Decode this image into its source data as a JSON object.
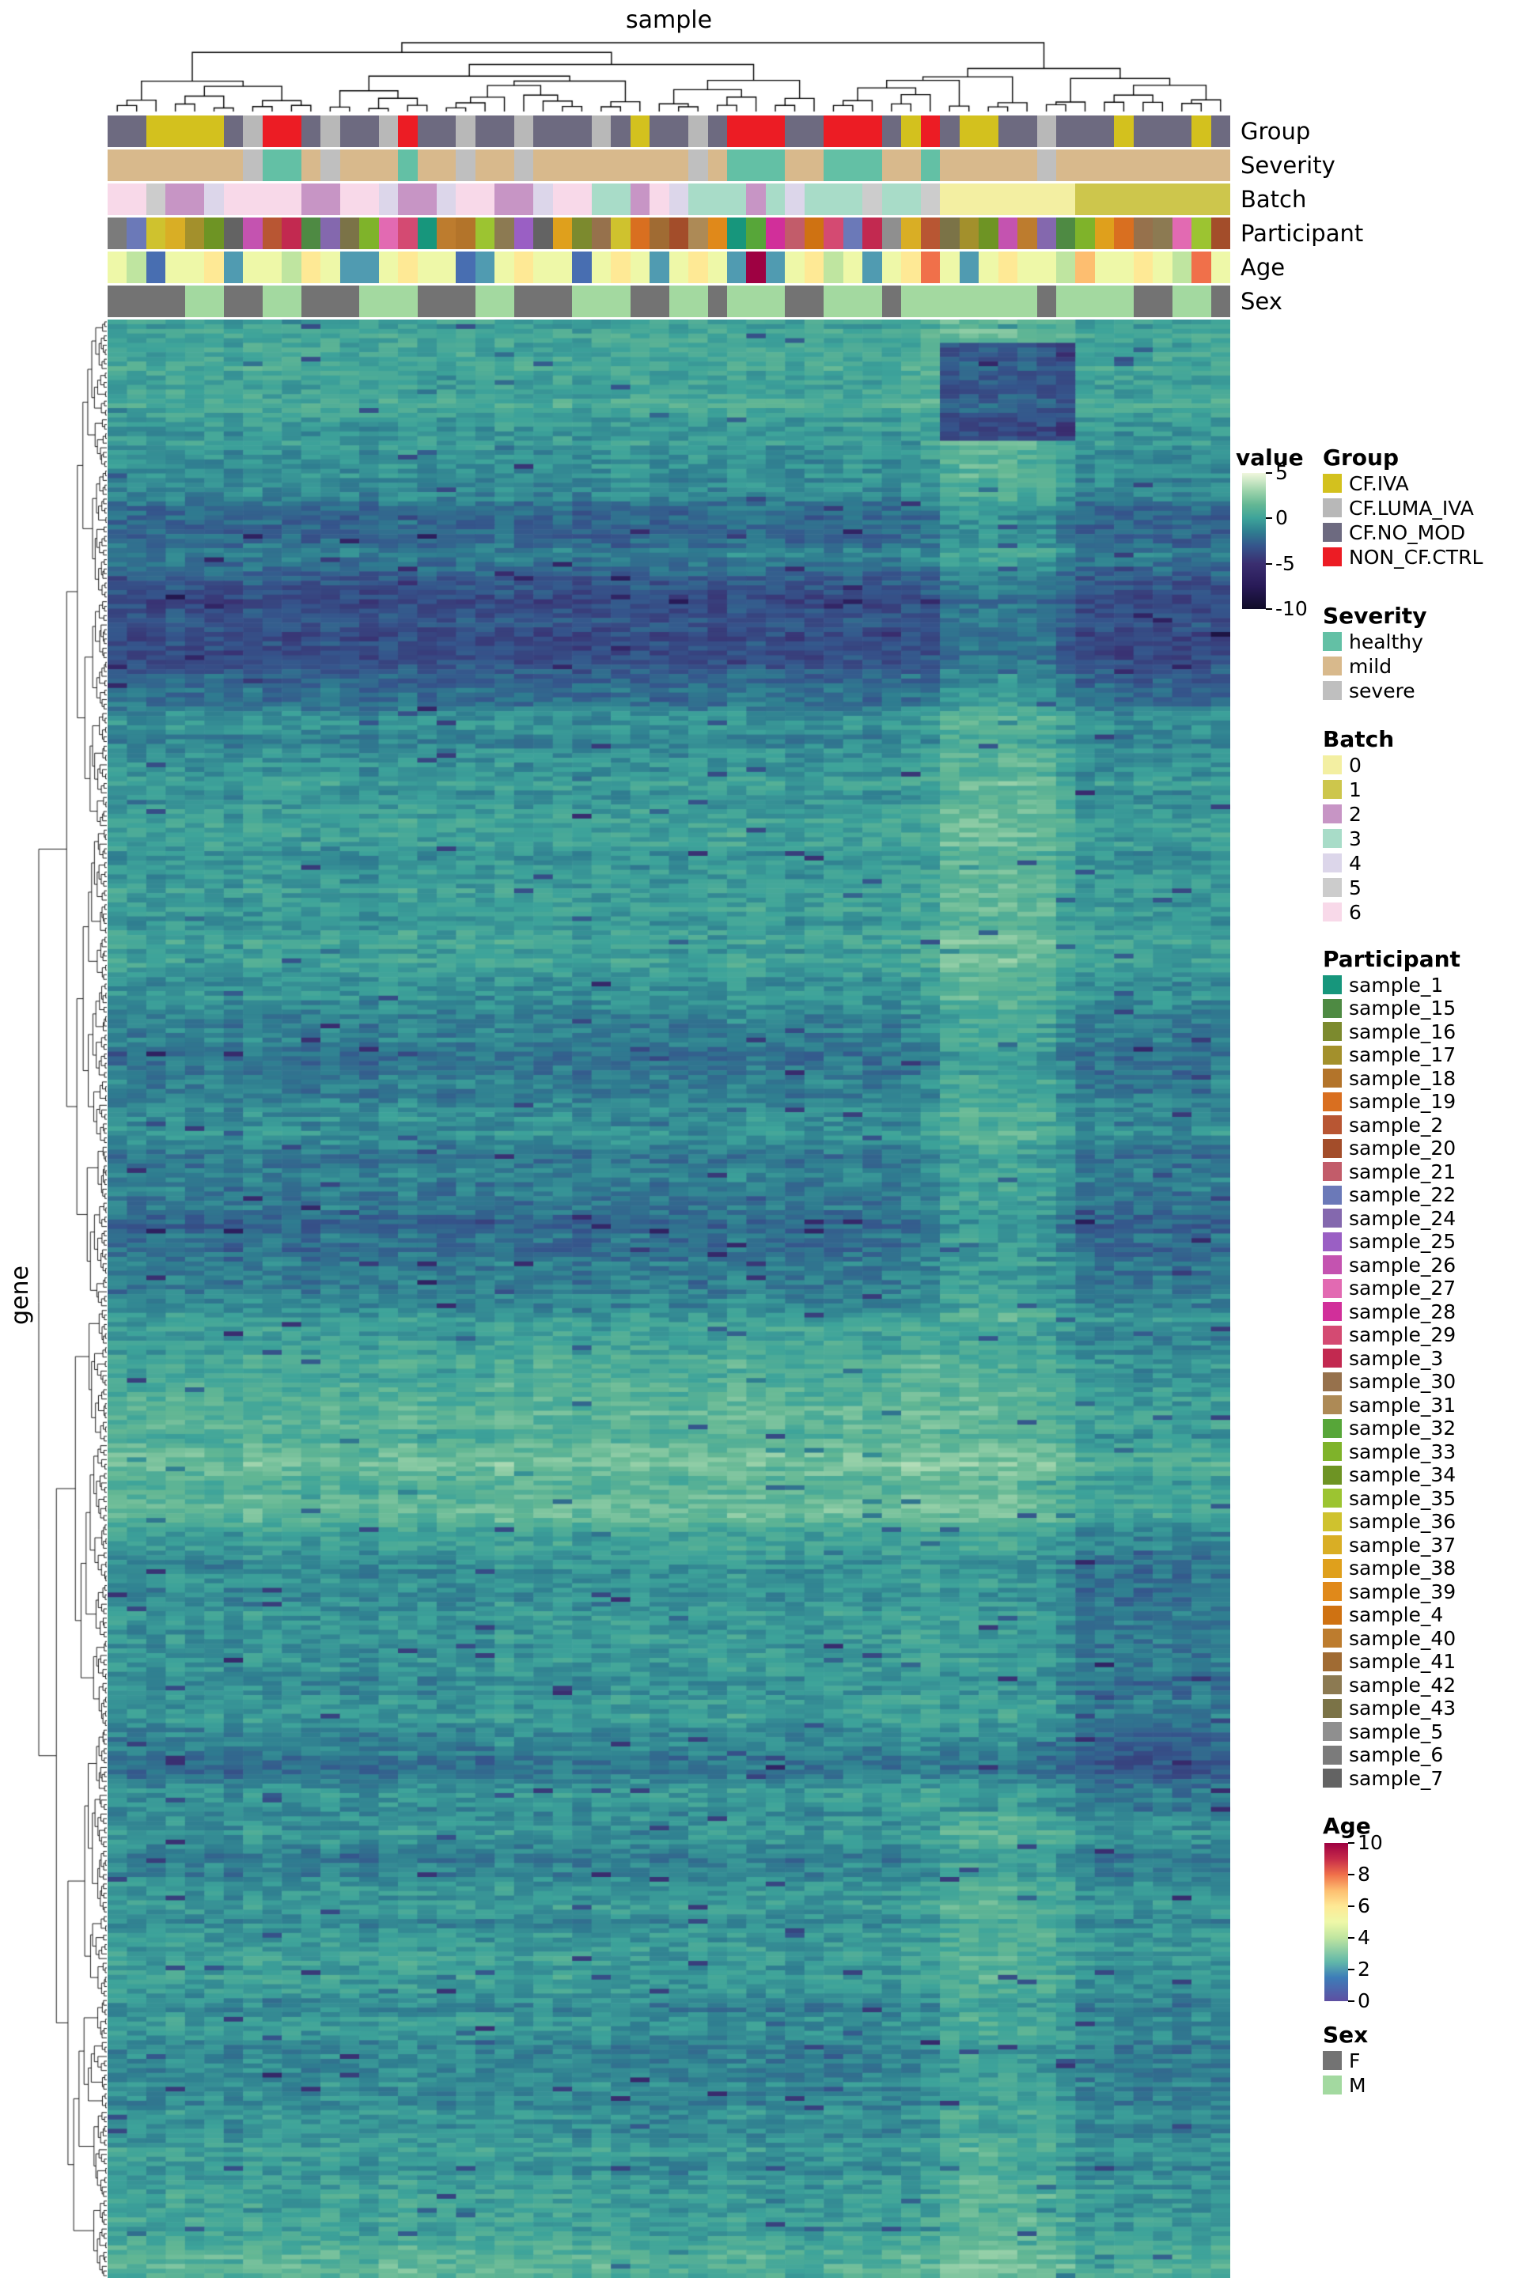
{
  "titles": {
    "column": "sample",
    "row": "gene"
  },
  "annotation_labels": [
    "Group",
    "Severity",
    "Batch",
    "Participant",
    "Age",
    "Sex"
  ],
  "legends": {
    "value": {
      "title": "value",
      "ticks": [
        "5",
        "0",
        "-5",
        "-10"
      ],
      "tick_values": [
        5,
        0,
        -5,
        -10
      ],
      "max": 5,
      "min": -10
    },
    "group": {
      "title": "Group",
      "items": [
        {
          "label": "CF.IVA",
          "color": "#d3c11e"
        },
        {
          "label": "CF.LUMA_IVA",
          "color": "#b8b8b8"
        },
        {
          "label": "CF.NO_MOD",
          "color": "#6d6a80"
        },
        {
          "label": "NON_CF.CTRL",
          "color": "#ec1c24"
        }
      ]
    },
    "severity": {
      "title": "Severity",
      "items": [
        {
          "label": "healthy",
          "color": "#63c0a5"
        },
        {
          "label": "mild",
          "color": "#d8b98c"
        },
        {
          "label": "severe",
          "color": "#bfbfbf"
        }
      ]
    },
    "batch": {
      "title": "Batch",
      "items": [
        {
          "label": "0",
          "color": "#f3efa2"
        },
        {
          "label": "1",
          "color": "#cdc64c"
        },
        {
          "label": "2",
          "color": "#c795c5"
        },
        {
          "label": "3",
          "color": "#a8dcc8"
        },
        {
          "label": "4",
          "color": "#dcd6ea"
        },
        {
          "label": "5",
          "color": "#cccccc"
        },
        {
          "label": "6",
          "color": "#f8d9e9"
        }
      ]
    },
    "participant": {
      "title": "Participant",
      "items": [
        {
          "label": "sample_1",
          "color": "#17967c"
        },
        {
          "label": "sample_15",
          "color": "#4e8a43"
        },
        {
          "label": "sample_16",
          "color": "#7c8a2e"
        },
        {
          "label": "sample_17",
          "color": "#a3902c"
        },
        {
          "label": "sample_18",
          "color": "#b3742a"
        },
        {
          "label": "sample_19",
          "color": "#d96f20"
        },
        {
          "label": "sample_2",
          "color": "#b85633"
        },
        {
          "label": "sample_20",
          "color": "#a34d2a"
        },
        {
          "label": "sample_21",
          "color": "#c25c6a"
        },
        {
          "label": "sample_22",
          "color": "#6b79b8"
        },
        {
          "label": "sample_24",
          "color": "#8468ae"
        },
        {
          "label": "sample_25",
          "color": "#9a5fc4"
        },
        {
          "label": "sample_26",
          "color": "#c453b0"
        },
        {
          "label": "sample_27",
          "color": "#e26ab2"
        },
        {
          "label": "sample_28",
          "color": "#d12f9a"
        },
        {
          "label": "sample_29",
          "color": "#d44a72"
        },
        {
          "label": "sample_3",
          "color": "#c22950"
        },
        {
          "label": "sample_30",
          "color": "#96714c"
        },
        {
          "label": "sample_31",
          "color": "#ad8a56"
        },
        {
          "label": "sample_32",
          "color": "#57a639"
        },
        {
          "label": "sample_33",
          "color": "#7fb32a"
        },
        {
          "label": "sample_34",
          "color": "#6e9424"
        },
        {
          "label": "sample_35",
          "color": "#9cc431"
        },
        {
          "label": "sample_36",
          "color": "#cfc22e"
        },
        {
          "label": "sample_37",
          "color": "#d9ae25"
        },
        {
          "label": "sample_38",
          "color": "#dfa01c"
        },
        {
          "label": "sample_39",
          "color": "#e0891a"
        },
        {
          "label": "sample_4",
          "color": "#cf7212"
        },
        {
          "label": "sample_40",
          "color": "#bd7c2e"
        },
        {
          "label": "sample_41",
          "color": "#a06b33"
        },
        {
          "label": "sample_42",
          "color": "#8c7a52"
        },
        {
          "label": "sample_43",
          "color": "#7b7347"
        },
        {
          "label": "sample_5",
          "color": "#8f8f8f"
        },
        {
          "label": "sample_6",
          "color": "#7b7b7b"
        },
        {
          "label": "sample_7",
          "color": "#636363"
        }
      ]
    },
    "age": {
      "title": "Age",
      "ticks": [
        "10",
        "8",
        "6",
        "4",
        "2",
        "0"
      ],
      "tick_values": [
        10,
        8,
        6,
        4,
        2,
        0
      ],
      "max": 10,
      "min": 0,
      "stops": [
        [
          0,
          "#5e4fa2"
        ],
        [
          1.5,
          "#3d7db8"
        ],
        [
          2.5,
          "#62b8a9"
        ],
        [
          4,
          "#bfe5a0"
        ],
        [
          5,
          "#eef8a8"
        ],
        [
          6,
          "#fee995"
        ],
        [
          7,
          "#fdbe70"
        ],
        [
          8,
          "#f0704a"
        ],
        [
          9,
          "#c62a49"
        ],
        [
          10,
          "#9e0142"
        ]
      ]
    },
    "sex": {
      "title": "Sex",
      "items": [
        {
          "label": "F",
          "color": "#737373"
        },
        {
          "label": "M",
          "color": "#a3d9a0"
        }
      ]
    }
  },
  "chart_data": {
    "type": "heatmap",
    "xlabel": "sample",
    "ylabel": "gene",
    "colorbar_label": "value",
    "value_range": [
      -10,
      5
    ],
    "colormap_stops": [
      [
        -10,
        "#100c28"
      ],
      [
        -7.5,
        "#281a57"
      ],
      [
        -5,
        "#3a2e70"
      ],
      [
        -3,
        "#35568c"
      ],
      [
        -1.5,
        "#2f7d90"
      ],
      [
        0,
        "#3da39a"
      ],
      [
        1.5,
        "#63b794"
      ],
      [
        3,
        "#9cd3ab"
      ],
      [
        4.2,
        "#cfe9c8"
      ],
      [
        5,
        "#f0f7dd"
      ]
    ],
    "n_columns": 58,
    "n_rows_rendered": 420,
    "column_annotations": {
      "group": [
        "CF.NO_MOD",
        "CF.NO_MOD",
        "CF.IVA",
        "CF.IVA",
        "CF.IVA",
        "CF.IVA",
        "CF.NO_MOD",
        "CF.LUMA_IVA",
        "NON_CF.CTRL",
        "NON_CF.CTRL",
        "CF.NO_MOD",
        "CF.LUMA_IVA",
        "CF.NO_MOD",
        "CF.NO_MOD",
        "CF.LUMA_IVA",
        "NON_CF.CTRL",
        "CF.NO_MOD",
        "CF.NO_MOD",
        "CF.LUMA_IVA",
        "CF.NO_MOD",
        "CF.NO_MOD",
        "CF.LUMA_IVA",
        "CF.NO_MOD",
        "CF.NO_MOD",
        "CF.NO_MOD",
        "CF.LUMA_IVA",
        "CF.NO_MOD",
        "CF.IVA",
        "CF.NO_MOD",
        "CF.NO_MOD",
        "CF.LUMA_IVA",
        "CF.NO_MOD",
        "NON_CF.CTRL",
        "NON_CF.CTRL",
        "NON_CF.CTRL",
        "CF.NO_MOD",
        "CF.NO_MOD",
        "NON_CF.CTRL",
        "NON_CF.CTRL",
        "NON_CF.CTRL",
        "CF.NO_MOD",
        "CF.IVA",
        "NON_CF.CTRL",
        "CF.NO_MOD",
        "CF.IVA",
        "CF.IVA",
        "CF.NO_MOD",
        "CF.NO_MOD",
        "CF.LUMA_IVA",
        "CF.NO_MOD",
        "CF.NO_MOD",
        "CF.NO_MOD",
        "CF.IVA",
        "CF.NO_MOD",
        "CF.NO_MOD",
        "CF.NO_MOD",
        "CF.IVA",
        "CF.NO_MOD"
      ],
      "severity": [
        "mild",
        "mild",
        "mild",
        "mild",
        "mild",
        "mild",
        "mild",
        "severe",
        "healthy",
        "healthy",
        "mild",
        "severe",
        "mild",
        "mild",
        "mild",
        "healthy",
        "mild",
        "mild",
        "severe",
        "mild",
        "mild",
        "severe",
        "mild",
        "mild",
        "mild",
        "mild",
        "mild",
        "mild",
        "mild",
        "mild",
        "severe",
        "mild",
        "healthy",
        "healthy",
        "healthy",
        "mild",
        "mild",
        "healthy",
        "healthy",
        "healthy",
        "mild",
        "mild",
        "healthy",
        "mild",
        "mild",
        "mild",
        "mild",
        "mild",
        "severe",
        "mild",
        "mild",
        "mild",
        "mild",
        "mild",
        "mild",
        "mild",
        "mild",
        "mild"
      ],
      "batch": [
        "6",
        "6",
        "5",
        "2",
        "2",
        "4",
        "6",
        "6",
        "6",
        "6",
        "2",
        "2",
        "6",
        "6",
        "4",
        "2",
        "2",
        "4",
        "6",
        "6",
        "2",
        "2",
        "4",
        "6",
        "6",
        "3",
        "3",
        "2",
        "6",
        "4",
        "3",
        "3",
        "3",
        "2",
        "3",
        "4",
        "3",
        "3",
        "3",
        "5",
        "3",
        "3",
        "5",
        "0",
        "0",
        "0",
        "0",
        "0",
        "0",
        "0",
        "1",
        "1",
        "1",
        "1",
        "1",
        "1",
        "1",
        "1"
      ],
      "participant": [
        "sample_6",
        "sample_22",
        "sample_36",
        "sample_37",
        "sample_17",
        "sample_34",
        "sample_7",
        "sample_26",
        "sample_2",
        "sample_3",
        "sample_15",
        "sample_24",
        "sample_43",
        "sample_33",
        "sample_27",
        "sample_29",
        "sample_1",
        "sample_40",
        "sample_18",
        "sample_35",
        "sample_42",
        "sample_25",
        "sample_7",
        "sample_38",
        "sample_16",
        "sample_30",
        "sample_36",
        "sample_19",
        "sample_41",
        "sample_20",
        "sample_31",
        "sample_39",
        "sample_1",
        "sample_32",
        "sample_28",
        "sample_21",
        "sample_4",
        "sample_29",
        "sample_22",
        "sample_3",
        "sample_5",
        "sample_37",
        "sample_2",
        "sample_43",
        "sample_17",
        "sample_34",
        "sample_26",
        "sample_40",
        "sample_24",
        "sample_15",
        "sample_33",
        "sample_38",
        "sample_19",
        "sample_30",
        "sample_42",
        "sample_27",
        "sample_35",
        "sample_20"
      ],
      "age": [
        5,
        4,
        1,
        5,
        5,
        6,
        2,
        5,
        5,
        4,
        6,
        5,
        2,
        2,
        5,
        6,
        5,
        5,
        1,
        2,
        5,
        6,
        5,
        5,
        1,
        5,
        6,
        5,
        2,
        5,
        6,
        5,
        2,
        10,
        2,
        5,
        6,
        4,
        5,
        2,
        5,
        6,
        8,
        5,
        2,
        5,
        6,
        5,
        5,
        4,
        7,
        5,
        5,
        6,
        5,
        4,
        8,
        5
      ],
      "sex": [
        "F",
        "F",
        "F",
        "F",
        "M",
        "M",
        "F",
        "F",
        "M",
        "M",
        "F",
        "F",
        "F",
        "M",
        "M",
        "M",
        "F",
        "F",
        "F",
        "M",
        "M",
        "F",
        "F",
        "F",
        "M",
        "M",
        "M",
        "F",
        "F",
        "M",
        "M",
        "F",
        "M",
        "M",
        "M",
        "F",
        "F",
        "M",
        "M",
        "M",
        "F",
        "M",
        "M",
        "M",
        "M",
        "M",
        "M",
        "M",
        "F",
        "M",
        "M",
        "M",
        "M",
        "F",
        "F",
        "M",
        "M",
        "F"
      ]
    },
    "render": {
      "seed": 1337,
      "noise": 0.95,
      "speckle_prob": 0.018,
      "speckle_delta": -2.6,
      "row_walk_step": 0.5,
      "row_walk_damp": 0.975,
      "column_offsets": [
        0.1,
        0,
        -0.1,
        0.2,
        0,
        0.1,
        -0.2,
        0.3,
        0.1,
        0,
        -0.1,
        0.2,
        0,
        -0.2,
        0.1,
        0.3,
        0,
        -0.1,
        0.1,
        0,
        0.2,
        -0.1,
        0,
        0.1,
        -0.2,
        0,
        0.1,
        0.2,
        0,
        -0.1,
        0.1,
        0,
        0.3,
        0.2,
        0.1,
        -0.1,
        0,
        0.1,
        0.2,
        0,
        0.1,
        0.4,
        0.5,
        1.3,
        1.5,
        1.4,
        1.5,
        1.3,
        1.2,
        0.7,
        -0.1,
        0,
        -0.2,
        -0.1,
        0,
        -0.2,
        -0.1,
        0
      ],
      "patches": [
        {
          "rows": [
            5,
            26
          ],
          "cols": [
            43,
            50
          ],
          "delta": -4.5
        },
        {
          "rows": [
            215,
            320
          ],
          "cols": [
            43,
            58
          ],
          "delta": -1.2
        },
        {
          "rows": [
            27,
            200
          ],
          "cols": [
            43,
            49
          ],
          "delta": 0.4
        },
        {
          "rows": [
            95,
            135
          ],
          "cols": [
            0,
            58
          ],
          "delta": 0.45
        },
        {
          "rows": [
            350,
            420
          ],
          "cols": [
            0,
            26
          ],
          "delta": 0.4
        },
        {
          "rows": [
            215,
            320
          ],
          "cols": [
            0,
            20
          ],
          "delta": -0.3
        }
      ]
    },
    "dendrograms": {
      "column": {
        "leaves": 58,
        "seed": 7,
        "first_split": 0.63
      },
      "row": {
        "leaves": 420,
        "seed": 11
      }
    }
  }
}
